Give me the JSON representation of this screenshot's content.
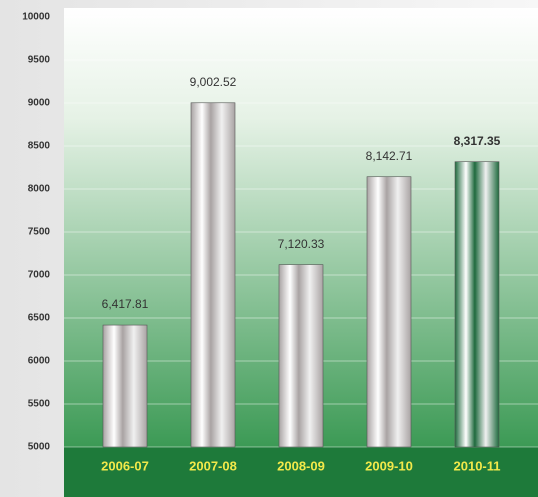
{
  "chart_data": {
    "type": "bar",
    "categories": [
      "2006-07",
      "2007-08",
      "2008-09",
      "2009-10",
      "2010-11"
    ],
    "values": [
      6417.81,
      9002.52,
      7120.33,
      8142.71,
      8317.35
    ],
    "value_labels": [
      "6,417.81",
      "9,002.52",
      "7,120.33",
      "8,142.71",
      "8,317.35"
    ],
    "colors": [
      "#a9a3a3",
      "#a9a3a3",
      "#a9a3a3",
      "#a9a3a3",
      "#1f6a3e"
    ],
    "ylim": [
      5000,
      10000
    ],
    "yticks": [
      5000,
      5500,
      6000,
      6500,
      7000,
      7500,
      8000,
      8500,
      9000,
      9500,
      10000
    ],
    "grid": true
  }
}
